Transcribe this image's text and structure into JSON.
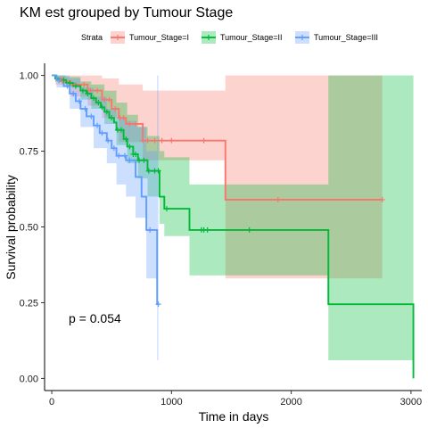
{
  "chart_data": {
    "type": "line",
    "subtype": "kaplan-meier survival curve with confidence bands and censor marks",
    "title": "KM est grouped by Tumour Stage",
    "xlabel": "Time in days",
    "ylabel": "Survival probability",
    "xlim": [
      -60,
      3090
    ],
    "ylim": [
      -0.04,
      1.04
    ],
    "xticks": [
      0,
      1000,
      2000,
      3000
    ],
    "xtick_labels": [
      "0",
      "1000",
      "2000",
      "3000"
    ],
    "yticks": [
      0,
      0.25,
      0.5,
      0.75,
      1.0
    ],
    "ytick_labels": [
      "0.00",
      "0.25",
      "0.50",
      "0.75",
      "1.00"
    ],
    "grid": false,
    "legend": {
      "title": "Strata",
      "placement": "top"
    },
    "annotation": "p = 0.054",
    "series": [
      {
        "name": "Tumour_Stage=I",
        "color": "#F8766D",
        "steps": [
          [
            0,
            1.0
          ],
          [
            30,
            0.99
          ],
          [
            90,
            0.98
          ],
          [
            160,
            0.97
          ],
          [
            300,
            0.95
          ],
          [
            420,
            0.92
          ],
          [
            500,
            0.89
          ],
          [
            560,
            0.86
          ],
          [
            620,
            0.84
          ],
          [
            760,
            0.785
          ],
          [
            1450,
            0.59
          ],
          [
            2760,
            0.59
          ]
        ],
        "ci_steps": [
          [
            0,
            1.0,
            1.0
          ],
          [
            30,
            0.97,
            1.0
          ],
          [
            160,
            0.93,
            1.0
          ],
          [
            300,
            0.9,
            1.0
          ],
          [
            420,
            0.86,
            0.99
          ],
          [
            560,
            0.78,
            0.97
          ],
          [
            760,
            0.72,
            0.95
          ],
          [
            1450,
            0.33,
            1.0
          ],
          [
            2760,
            0.33,
            1.0
          ]
        ],
        "censor_times": [
          90,
          200,
          270,
          320,
          380,
          440,
          480,
          530,
          570,
          600,
          650,
          700,
          760,
          800,
          860,
          920,
          1000,
          1270,
          1890,
          2760
        ]
      },
      {
        "name": "Tumour_Stage=II",
        "color": "#00BA38",
        "steps": [
          [
            0,
            1.0
          ],
          [
            30,
            0.99
          ],
          [
            60,
            0.985
          ],
          [
            120,
            0.975
          ],
          [
            180,
            0.965
          ],
          [
            240,
            0.95
          ],
          [
            290,
            0.94
          ],
          [
            330,
            0.925
          ],
          [
            370,
            0.91
          ],
          [
            410,
            0.895
          ],
          [
            440,
            0.88
          ],
          [
            480,
            0.86
          ],
          [
            520,
            0.845
          ],
          [
            540,
            0.82
          ],
          [
            600,
            0.79
          ],
          [
            630,
            0.765
          ],
          [
            680,
            0.74
          ],
          [
            720,
            0.72
          ],
          [
            800,
            0.685
          ],
          [
            900,
            0.6
          ],
          [
            940,
            0.56
          ],
          [
            1150,
            0.49
          ],
          [
            2310,
            0.245
          ],
          [
            3020,
            0.0
          ]
        ],
        "ci_steps": [
          [
            0,
            1.0,
            1.0
          ],
          [
            30,
            0.98,
            1.0
          ],
          [
            120,
            0.96,
            0.995
          ],
          [
            240,
            0.92,
            0.98
          ],
          [
            330,
            0.89,
            0.97
          ],
          [
            440,
            0.84,
            0.95
          ],
          [
            540,
            0.77,
            0.91
          ],
          [
            630,
            0.71,
            0.87
          ],
          [
            720,
            0.66,
            0.83
          ],
          [
            800,
            0.6,
            0.8
          ],
          [
            900,
            0.51,
            0.75
          ],
          [
            940,
            0.47,
            0.73
          ],
          [
            1150,
            0.34,
            0.64
          ],
          [
            2310,
            0.06,
            1.0
          ],
          [
            3020,
            0.0,
            1.0
          ]
        ],
        "censor_times": [
          60,
          100,
          150,
          200,
          260,
          300,
          350,
          390,
          420,
          460,
          500,
          550,
          580,
          620,
          650,
          680,
          700,
          730,
          770,
          810,
          860,
          890,
          960,
          1250,
          1270,
          1300,
          1650
        ]
      },
      {
        "name": "Tumour_Stage=III",
        "color": "#619CFF",
        "steps": [
          [
            0,
            1.0
          ],
          [
            40,
            0.985
          ],
          [
            100,
            0.965
          ],
          [
            150,
            0.94
          ],
          [
            200,
            0.915
          ],
          [
            240,
            0.89
          ],
          [
            290,
            0.865
          ],
          [
            350,
            0.835
          ],
          [
            400,
            0.81
          ],
          [
            460,
            0.785
          ],
          [
            500,
            0.76
          ],
          [
            540,
            0.735
          ],
          [
            620,
            0.72
          ],
          [
            700,
            0.665
          ],
          [
            750,
            0.6
          ],
          [
            790,
            0.49
          ],
          [
            880,
            0.245
          ],
          [
            890,
            0.245
          ]
        ],
        "ci_steps": [
          [
            0,
            1.0,
            1.0
          ],
          [
            40,
            0.96,
            1.0
          ],
          [
            150,
            0.89,
            0.99
          ],
          [
            240,
            0.83,
            0.96
          ],
          [
            350,
            0.76,
            0.93
          ],
          [
            460,
            0.71,
            0.89
          ],
          [
            540,
            0.64,
            0.86
          ],
          [
            620,
            0.6,
            0.85
          ],
          [
            700,
            0.53,
            0.83
          ],
          [
            790,
            0.33,
            0.75
          ],
          [
            880,
            0.06,
            1.0
          ],
          [
            890,
            0.06,
            1.0
          ]
        ],
        "censor_times": [
          60,
          130,
          180,
          230,
          280,
          330,
          380,
          420,
          470,
          520,
          560,
          610,
          650,
          820,
          890
        ]
      }
    ]
  }
}
